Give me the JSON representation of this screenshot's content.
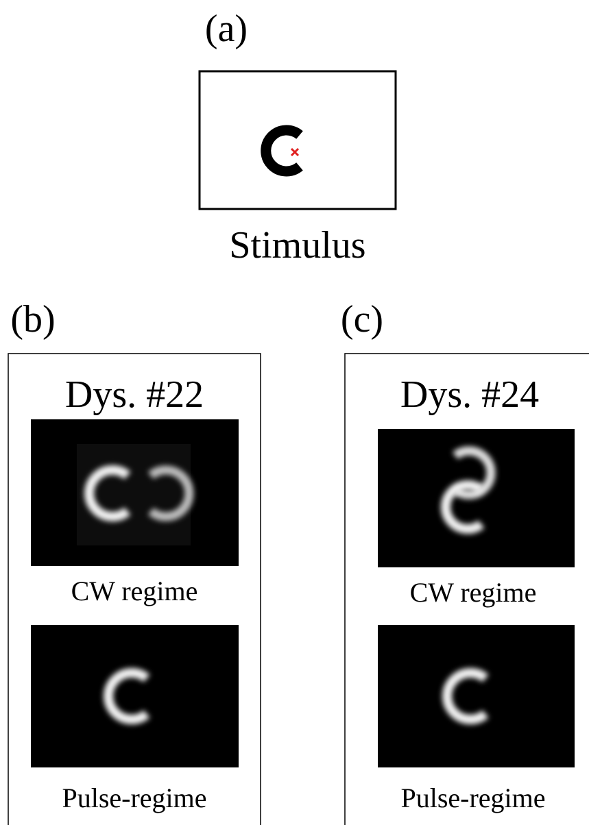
{
  "panels": [
    {
      "label": "(a)",
      "caption": "Stimulus"
    },
    {
      "label": "(b)",
      "title": "Dys. #22",
      "captions": [
        "CW regime",
        "Pulse-regime"
      ]
    },
    {
      "label": "(c)",
      "title": "Dys. #24",
      "captions": [
        "CW regime",
        "Pulse-regime"
      ]
    }
  ]
}
